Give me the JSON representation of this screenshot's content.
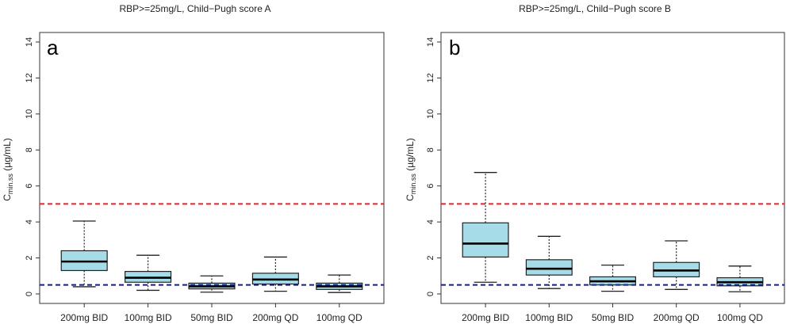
{
  "chart_data": [
    {
      "type": "boxplot",
      "title": "RBP>=25mg/L, Child−Pugh score A",
      "panel_label": "a",
      "ylabel_main": "C",
      "ylabel_sub": "min.ss",
      "ylabel_unit": " (µg/mL)",
      "ylim": [
        0,
        14
      ],
      "yticks": [
        "0",
        "2",
        "4",
        "6",
        "8",
        "10",
        "12",
        "14"
      ],
      "categories": [
        "200mg BID",
        "100mg BID",
        "50mg BID",
        "200mg QD",
        "100mg QD"
      ],
      "boxes": [
        {
          "whisker_low": 0.4,
          "q1": 1.3,
          "median": 1.8,
          "q3": 2.4,
          "whisker_high": 4.05
        },
        {
          "whisker_low": 0.2,
          "q1": 0.65,
          "median": 0.9,
          "q3": 1.25,
          "whisker_high": 2.15
        },
        {
          "whisker_low": 0.1,
          "q1": 0.28,
          "median": 0.42,
          "q3": 0.6,
          "whisker_high": 1.0
        },
        {
          "whisker_low": 0.15,
          "q1": 0.55,
          "median": 0.8,
          "q3": 1.15,
          "whisker_high": 2.05
        },
        {
          "whisker_low": 0.08,
          "q1": 0.25,
          "median": 0.42,
          "q3": 0.6,
          "whisker_high": 1.05
        }
      ],
      "ref_lines": [
        {
          "value": 5.0,
          "color": "#e8202a"
        },
        {
          "value": 0.5,
          "color": "#1a1a8c"
        }
      ]
    },
    {
      "type": "boxplot",
      "title": "RBP>=25mg/L, Child−Pugh score B",
      "panel_label": "b",
      "ylabel_main": "C",
      "ylabel_sub": "min.ss",
      "ylabel_unit": " (µg/mL)",
      "ylim": [
        0,
        14
      ],
      "yticks": [
        "0",
        "2",
        "4",
        "6",
        "8",
        "10",
        "12",
        "14"
      ],
      "categories": [
        "200mg BID",
        "100mg BID",
        "50mg BID",
        "200mg QD",
        "100mg QD"
      ],
      "boxes": [
        {
          "whisker_low": 0.65,
          "q1": 2.05,
          "median": 2.8,
          "q3": 3.95,
          "whisker_high": 6.75
        },
        {
          "whisker_low": 0.3,
          "q1": 1.05,
          "median": 1.4,
          "q3": 1.9,
          "whisker_high": 3.2
        },
        {
          "whisker_low": 0.15,
          "q1": 0.5,
          "median": 0.7,
          "q3": 0.95,
          "whisker_high": 1.6
        },
        {
          "whisker_low": 0.25,
          "q1": 0.95,
          "median": 1.3,
          "q3": 1.75,
          "whisker_high": 2.95
        },
        {
          "whisker_low": 0.12,
          "q1": 0.45,
          "median": 0.65,
          "q3": 0.9,
          "whisker_high": 1.55
        }
      ],
      "ref_lines": [
        {
          "value": 5.0,
          "color": "#e8202a"
        },
        {
          "value": 0.5,
          "color": "#1a1a8c"
        }
      ]
    }
  ],
  "colors": {
    "box_fill": "#a6dce8",
    "box_stroke": "#222222",
    "axis": "#333333"
  }
}
